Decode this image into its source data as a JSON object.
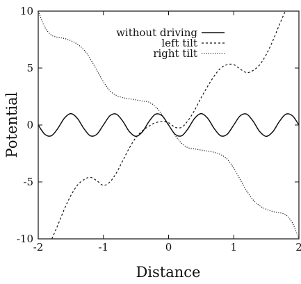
{
  "chart_data": {
    "type": "line",
    "title": "",
    "xlabel": "Distance",
    "ylabel": "Potential",
    "xlim": [
      -2,
      2
    ],
    "ylim": [
      -10,
      10
    ],
    "x_ticks": [
      -2,
      -1,
      0,
      1,
      2
    ],
    "y_ticks": [
      -10,
      -5,
      0,
      5,
      10
    ],
    "x_tick_labels": [
      "-2",
      "-1",
      "0",
      "1",
      "2"
    ],
    "y_tick_labels": [
      "-10",
      "-5",
      "0",
      "5",
      "10"
    ],
    "grid": false,
    "legend_position": "top-center",
    "series": [
      {
        "name": "without driving",
        "style": "solid",
        "x": [
          -2.0,
          -1.9,
          -1.8,
          -1.7,
          -1.6,
          -1.5,
          -1.4,
          -1.3,
          -1.2,
          -1.1,
          -1.0,
          -0.9,
          -0.8,
          -0.7,
          -0.6,
          -0.5,
          -0.4,
          -0.3,
          -0.2,
          -0.1,
          0.0,
          0.1,
          0.2,
          0.3,
          0.4,
          0.5,
          0.6,
          0.7,
          0.8,
          0.9,
          1.0,
          1.1,
          1.2,
          1.3,
          1.4,
          1.5,
          1.6,
          1.7,
          1.8,
          1.9,
          2.0
        ],
        "y": [
          0.0,
          -0.81,
          -0.95,
          -0.31,
          0.59,
          1.0,
          0.59,
          -0.31,
          -0.95,
          -0.81,
          0.0,
          0.81,
          0.95,
          0.31,
          -0.59,
          -1.0,
          -0.59,
          0.31,
          0.95,
          0.81,
          0.0,
          -0.81,
          -0.95,
          -0.31,
          0.59,
          1.0,
          0.59,
          -0.31,
          -0.95,
          -0.81,
          0.0,
          0.81,
          0.95,
          0.31,
          -0.59,
          -1.0,
          -0.59,
          0.31,
          0.95,
          0.81,
          0.0
        ]
      },
      {
        "name": "left tilt",
        "style": "dashed",
        "x": [
          -2.0,
          -1.9,
          -1.8,
          -1.7,
          -1.6,
          -1.5,
          -1.4,
          -1.3,
          -1.2,
          -1.1,
          -1.0,
          -0.9,
          -0.8,
          -0.7,
          -0.6,
          -0.5,
          -0.4,
          -0.3,
          -0.2,
          -0.1,
          0.0,
          0.1,
          0.2,
          0.3,
          0.4,
          0.5,
          0.6,
          0.7,
          0.8,
          0.9,
          1.0,
          1.1,
          1.2,
          1.3,
          1.4,
          1.5,
          1.6,
          1.7,
          1.8,
          1.9,
          2.0
        ],
        "y": [
          -11.8,
          -11.2,
          -10.1,
          -8.8,
          -7.4,
          -6.2,
          -5.3,
          -4.8,
          -4.6,
          -4.9,
          -5.3,
          -5.0,
          -4.2,
          -3.1,
          -2.0,
          -1.1,
          -0.5,
          -0.1,
          0.2,
          0.3,
          0.2,
          -0.2,
          -0.2,
          0.4,
          1.3,
          2.4,
          3.4,
          4.3,
          5.0,
          5.3,
          5.3,
          4.9,
          4.6,
          4.8,
          5.3,
          6.2,
          7.4,
          8.8,
          10.1,
          11.2,
          11.8
        ]
      },
      {
        "name": "right tilt",
        "style": "dotted",
        "x": [
          -2.0,
          -1.9,
          -1.8,
          -1.7,
          -1.6,
          -1.5,
          -1.4,
          -1.3,
          -1.2,
          -1.1,
          -1.0,
          -0.9,
          -0.8,
          -0.7,
          -0.6,
          -0.5,
          -0.4,
          -0.3,
          -0.2,
          -0.1,
          0.0,
          0.1,
          0.2,
          0.3,
          0.4,
          0.5,
          0.6,
          0.7,
          0.8,
          0.9,
          1.0,
          1.1,
          1.2,
          1.3,
          1.4,
          1.5,
          1.6,
          1.7,
          1.8,
          1.9,
          2.0
        ],
        "y": [
          10.0,
          8.6,
          7.9,
          7.7,
          7.6,
          7.4,
          7.1,
          6.6,
          5.8,
          4.8,
          3.8,
          3.0,
          2.6,
          2.4,
          2.3,
          2.2,
          2.1,
          2.0,
          1.6,
          0.9,
          0.0,
          -0.9,
          -1.6,
          -2.0,
          -2.1,
          -2.2,
          -2.3,
          -2.4,
          -2.6,
          -3.0,
          -3.8,
          -4.8,
          -5.8,
          -6.6,
          -7.1,
          -7.4,
          -7.6,
          -7.7,
          -7.9,
          -8.6,
          -10.0
        ]
      }
    ]
  }
}
